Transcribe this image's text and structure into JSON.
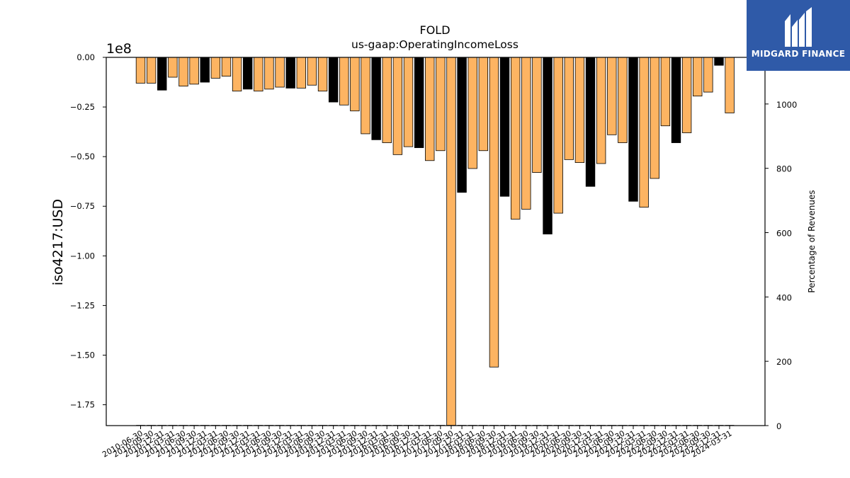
{
  "logo": {
    "name": "MIDGARD FINANCE",
    "icon": "midgard-logo-icon",
    "bg_color": "#2f5aa8"
  },
  "chart_data": {
    "type": "bar",
    "title": "FOLD",
    "subtitle": "us-gaap:OperatingIncomeLoss",
    "ylabel": "iso4217:USD",
    "y_offset_label": "1e8",
    "y2label": "Percentage of Revenues",
    "ylim": [
      -1.855,
      0.0
    ],
    "y_scale": 100000000,
    "y_ticks": [
      "0.00",
      "−0.25",
      "−0.50",
      "−0.75",
      "−1.00",
      "−1.25",
      "−1.50",
      "−1.75"
    ],
    "y_tick_values": [
      0,
      -0.25,
      -0.5,
      -0.75,
      -1.0,
      -1.25,
      -1.5,
      -1.75
    ],
    "y2lim": [
      0,
      1145
    ],
    "y2_ticks": [
      "0",
      "200",
      "400",
      "600",
      "800",
      "1000"
    ],
    "y2_tick_values": [
      0,
      200,
      400,
      600,
      800,
      1000
    ],
    "colors": {
      "quarter": "#fdb462",
      "annual": "#000000",
      "edge": "#000000"
    },
    "categories": [
      "2010-06-30",
      "2010-09-30",
      "2010-12-31",
      "2011-03-31",
      "2011-06-30",
      "2011-09-30",
      "2011-12-31",
      "2012-03-31",
      "2012-06-30",
      "2012-09-30",
      "2012-12-31",
      "2013-03-31",
      "2013-06-30",
      "2013-09-30",
      "2013-12-31",
      "2014-03-31",
      "2014-06-30",
      "2014-09-30",
      "2014-12-31",
      "2015-03-31",
      "2015-06-30",
      "2015-09-30",
      "2015-12-31",
      "2016-03-31",
      "2016-06-30",
      "2016-09-30",
      "2016-12-31",
      "2017-03-31",
      "2017-06-30",
      "2017-09-30",
      "2017-12-31",
      "2018-03-31",
      "2018-06-30",
      "2018-09-30",
      "2018-12-31",
      "2019-03-31",
      "2019-06-30",
      "2019-09-30",
      "2019-12-31",
      "2020-03-31",
      "2020-06-30",
      "2020-09-30",
      "2020-12-31",
      "2021-03-31",
      "2021-06-30",
      "2021-09-30",
      "2021-12-31",
      "2022-03-31",
      "2022-06-30",
      "2022-09-30",
      "2022-12-31",
      "2023-03-31",
      "2023-06-30",
      "2023-09-30",
      "2023-12-31",
      "2024-03-31"
    ],
    "values": [
      -0.13,
      -0.13,
      -0.165,
      -0.1,
      -0.145,
      -0.135,
      -0.125,
      -0.105,
      -0.095,
      -0.17,
      -0.16,
      -0.17,
      -0.16,
      -0.15,
      -0.155,
      -0.155,
      -0.14,
      -0.17,
      -0.225,
      -0.24,
      -0.27,
      -0.385,
      -0.415,
      -0.43,
      -0.49,
      -0.45,
      -0.455,
      -0.52,
      -0.47,
      -1.855,
      -0.68,
      -0.56,
      -0.47,
      -1.56,
      -0.7,
      -0.815,
      -0.765,
      -0.58,
      -0.89,
      -0.785,
      -0.515,
      -0.53,
      -0.65,
      -0.535,
      -0.39,
      -0.43,
      -0.725,
      -0.755,
      -0.61,
      -0.345,
      -0.43,
      -0.38,
      -0.195,
      -0.175,
      -0.04,
      -0.28
    ],
    "annual": [
      false,
      false,
      true,
      false,
      false,
      false,
      true,
      false,
      false,
      false,
      true,
      false,
      false,
      false,
      true,
      false,
      false,
      false,
      true,
      false,
      false,
      false,
      true,
      false,
      false,
      false,
      true,
      false,
      false,
      false,
      true,
      false,
      false,
      false,
      true,
      false,
      false,
      false,
      true,
      false,
      false,
      false,
      true,
      false,
      false,
      false,
      true,
      false,
      false,
      false,
      true,
      false,
      false,
      false,
      true,
      false
    ],
    "pct_of_revenues": [
      0,
      0,
      0,
      0,
      0,
      0,
      0,
      0,
      0,
      0,
      0,
      0,
      0,
      0,
      0,
      0,
      0,
      0,
      0,
      0,
      0,
      0,
      0,
      0,
      0,
      0,
      0,
      0,
      0,
      0,
      0,
      0,
      0,
      0,
      0,
      0,
      0,
      0,
      0,
      0,
      0,
      0,
      0,
      0,
      0,
      0,
      0,
      0,
      0,
      0,
      0,
      0,
      0,
      0,
      0,
      0
    ],
    "grid": false,
    "legend": "none"
  }
}
